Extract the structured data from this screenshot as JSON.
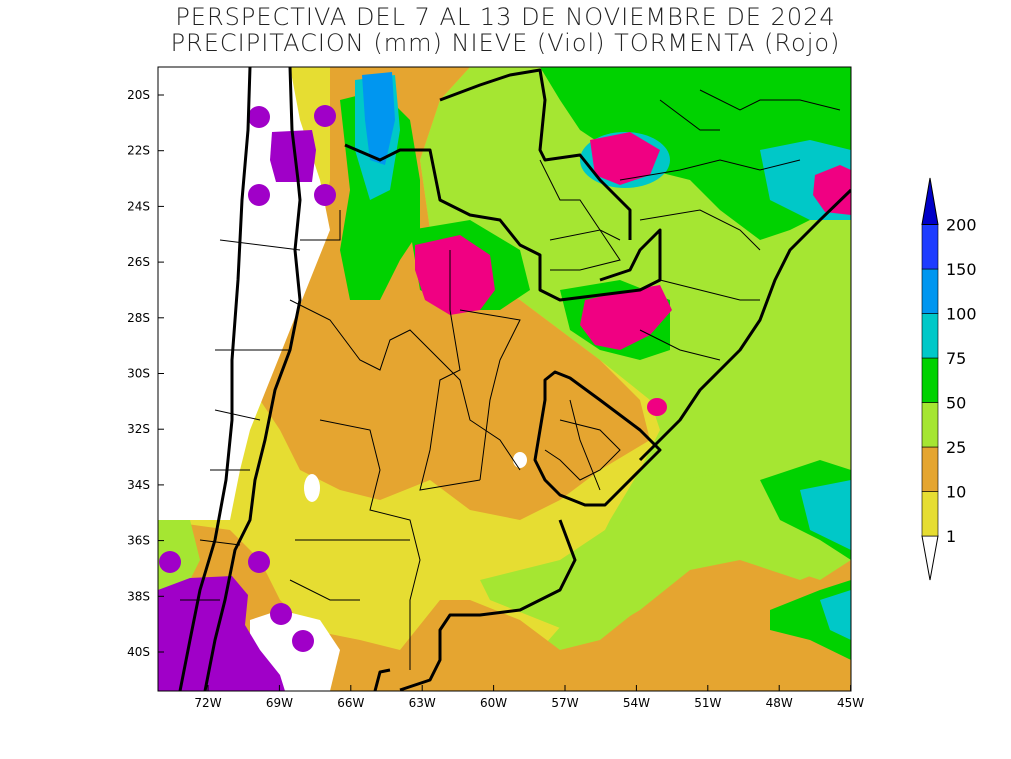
{
  "title": {
    "line1": "PERSPECTIVA DEL 7 AL 13 DE NOVIEMBRE DE 2024",
    "line2": "PRECIPITACION (mm) NIEVE (Viol) TORMENTA (Rojo)"
  },
  "axes": {
    "lat_labels": [
      "20S",
      "22S",
      "24S",
      "26S",
      "28S",
      "30S",
      "32S",
      "34S",
      "36S",
      "38S",
      "40S"
    ],
    "lon_labels": [
      "72W",
      "69W",
      "66W",
      "63W",
      "60W",
      "57W",
      "54W",
      "51W",
      "48W",
      "45W"
    ]
  },
  "legend": {
    "levels": [
      "1",
      "10",
      "25",
      "50",
      "75",
      "100",
      "150",
      "200"
    ],
    "colors": {
      "lt1": "#ffffff",
      "1_10": "#e6dd32",
      "10_25": "#e5a530",
      "25_50": "#a5e632",
      "50_75": "#00d200",
      "75_100": "#00c8c8",
      "100_150": "#0096f0",
      "150_200": "#1e3cff",
      "gt200": "#0000c8"
    }
  },
  "overlays": {
    "snow_color": "#a000c8",
    "storm_color": "#f00082"
  }
}
